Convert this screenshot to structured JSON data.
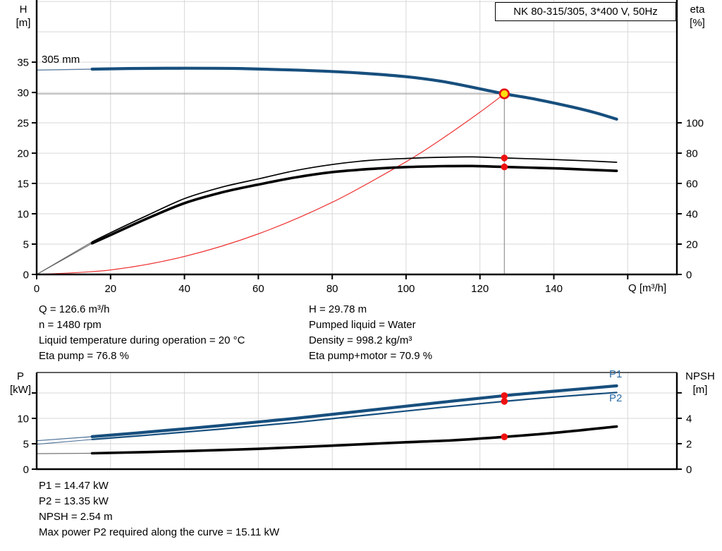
{
  "labels": {
    "product": "NK 80-315/305, 3*400 V, 50Hz",
    "h": "H",
    "m_unit": "[m]",
    "eta": "eta",
    "pct_unit": "[%]",
    "p": "P",
    "kw_unit": "[kW]",
    "npsh": "NPSH",
    "npsh_unit": "[m]",
    "q_axis": "Q [m³/h]",
    "impeller": "305 mm",
    "p1": "P1",
    "p2": "P2"
  },
  "info_top": {
    "left": [
      "Q = 126.6 m³/h",
      "n = 1480 rpm",
      "Liquid temperature during operation = 20 °C",
      "Eta pump = 76.8 %"
    ],
    "right": [
      "H = 29.78 m",
      "Pumped liquid = Water",
      "Density = 998.2 kg/m³",
      "Eta pump+motor = 70.9 %"
    ]
  },
  "info_bottom": [
    "P1 = 14.47 kW",
    "P2 = 13.35 kW",
    "NPSH = 2.54 m",
    "Max power P2 required along the curve = 15.11 kW"
  ],
  "duty": {
    "Q_m3h": 126.6,
    "H_m": 29.78,
    "eta_pump_pct": 76.8,
    "eta_pump_motor_pct": 70.9,
    "P1_kW": 14.47,
    "P2_kW": 13.35,
    "NPSH_m": 2.54,
    "max_P2_kW": 15.11,
    "speed_rpm": 1480,
    "impeller_mm": 305
  },
  "colors": {
    "curve_blue": "#174f7e",
    "label_blue": "#2e6ca5",
    "curve_black": "#000000",
    "system_red": "#ee3333",
    "marker_red": "#ef1010",
    "duty_yellow": "#ffdf0d",
    "duty_ring_red": "#e51212",
    "grid_gray": "#d7d7d7",
    "crosshair_gray": "#8a8a8a"
  },
  "chart_data": [
    {
      "type": "line",
      "title": "NK 80-315/305, 3*400 V, 50Hz",
      "x": {
        "label": "Q [m³/h]",
        "min": 0,
        "max": 173.3,
        "ticks": [
          0,
          20,
          40,
          60,
          80,
          100,
          120,
          140
        ],
        "minor_ticks": [
          160
        ],
        "grid": [
          20,
          40,
          60,
          80,
          100,
          120,
          140,
          160
        ]
      },
      "left_axis": {
        "label": "H [m]",
        "min": 0,
        "max": 45.25,
        "ticks": [
          0,
          5,
          10,
          15,
          20,
          25,
          30,
          35
        ],
        "grid": [
          5,
          10,
          15,
          20,
          25,
          30,
          35,
          40,
          45
        ]
      },
      "right_axis": {
        "label": "eta [%]",
        "min": 0,
        "max": 181,
        "ticks": [
          0,
          20,
          40,
          60,
          80,
          100
        ]
      },
      "crosshair": {
        "x": 126.6,
        "y_left": 29.78
      },
      "series": [
        {
          "name": "head-curve-extension",
          "axis": "left",
          "color": "#5d7da1",
          "width": 1.3,
          "smooth": false,
          "points": [
            [
              0,
              33.7
            ],
            [
              15,
              33.85
            ]
          ]
        },
        {
          "name": "system-curve",
          "axis": "left",
          "color": "#ee3333",
          "width": 1.2,
          "smooth": true,
          "points": [
            [
              0,
              0
            ],
            [
              20,
              0.74
            ],
            [
              40,
              2.97
            ],
            [
              60,
              6.69
            ],
            [
              80,
              11.9
            ],
            [
              100,
              18.58
            ],
            [
              110,
              22.48
            ],
            [
              120,
              26.75
            ],
            [
              126.6,
              29.78
            ]
          ]
        },
        {
          "name": "eta-pump-extension",
          "axis": "right",
          "color": "#666666",
          "width": 1.1,
          "smooth": false,
          "points": [
            [
              0,
              0
            ],
            [
              15,
              21.5
            ]
          ]
        },
        {
          "name": "eta-pump-motor-extension",
          "axis": "right",
          "color": "#666666",
          "width": 1.1,
          "smooth": false,
          "points": [
            [
              0,
              0
            ],
            [
              15,
              20.5
            ]
          ]
        },
        {
          "name": "eta-pump-curve",
          "axis": "right",
          "color": "#000000",
          "width": 1.7,
          "smooth": true,
          "points": [
            [
              15,
              21.5
            ],
            [
              20,
              27.5
            ],
            [
              30,
              39
            ],
            [
              40,
              50
            ],
            [
              50,
              57.5
            ],
            [
              60,
              63
            ],
            [
              70,
              68.5
            ],
            [
              80,
              72.5
            ],
            [
              90,
              75.2
            ],
            [
              100,
              76.5
            ],
            [
              110,
              77.3
            ],
            [
              118,
              77.5
            ],
            [
              126.6,
              76.8
            ],
            [
              140,
              75.8
            ],
            [
              150,
              74.8
            ],
            [
              157,
              74
            ]
          ]
        },
        {
          "name": "eta-pump-motor-curve",
          "axis": "right",
          "color": "#000000",
          "width": 3.6,
          "smooth": true,
          "points": [
            [
              15,
              20.5
            ],
            [
              20,
              26
            ],
            [
              30,
              37
            ],
            [
              40,
              47
            ],
            [
              50,
              54
            ],
            [
              60,
              59.3
            ],
            [
              70,
              64
            ],
            [
              80,
              67.5
            ],
            [
              90,
              69.5
            ],
            [
              100,
              70.8
            ],
            [
              110,
              71.4
            ],
            [
              118,
              71.5
            ],
            [
              126.6,
              70.9
            ],
            [
              140,
              70
            ],
            [
              150,
              69
            ],
            [
              157,
              68.3
            ]
          ]
        },
        {
          "name": "head-curve-305mm",
          "axis": "left",
          "color": "#174f7e",
          "width": 4.2,
          "smooth": true,
          "points": [
            [
              15,
              33.85
            ],
            [
              25,
              33.95
            ],
            [
              40,
              34
            ],
            [
              55,
              33.95
            ],
            [
              70,
              33.7
            ],
            [
              85,
              33.3
            ],
            [
              100,
              32.6
            ],
            [
              110,
              31.8
            ],
            [
              120,
              30.6
            ],
            [
              126.6,
              29.78
            ],
            [
              135,
              28.9
            ],
            [
              145,
              27.6
            ],
            [
              151,
              26.7
            ],
            [
              157,
              25.6
            ]
          ]
        }
      ],
      "markers": [
        {
          "name": "eta-pump-dot",
          "x": 126.6,
          "value": 76.8,
          "axis": "right",
          "style": "dot"
        },
        {
          "name": "eta-pump-motor-dot",
          "x": 126.6,
          "value": 70.9,
          "axis": "right",
          "style": "dot"
        },
        {
          "name": "duty-point",
          "x": 126.6,
          "value": 29.78,
          "axis": "left",
          "style": "duty"
        }
      ]
    },
    {
      "type": "line",
      "x": {
        "min": 0,
        "max": 173.3,
        "ticks": [],
        "minor_ticks": [],
        "grid": [
          20,
          40,
          60,
          80,
          100,
          120,
          140,
          160
        ]
      },
      "left_axis": {
        "label": "P [kW]",
        "min": 0,
        "max": 19.03,
        "ticks": [
          0,
          5,
          10
        ],
        "minor_ticks": [
          15
        ],
        "grid": [
          5,
          10,
          15
        ]
      },
      "right_axis": {
        "label": "NPSH [m]",
        "min": 0,
        "max": 7.6,
        "ticks": [
          0,
          2,
          4
        ],
        "minor_ticks": [
          6
        ]
      },
      "series": [
        {
          "name": "p1-curve-extension",
          "axis": "left",
          "color": "#4a6f96",
          "width": 1.2,
          "smooth": false,
          "points": [
            [
              0,
              5.6
            ],
            [
              15,
              6.4
            ]
          ]
        },
        {
          "name": "p2-curve-extension",
          "axis": "left",
          "color": "#4a6f96",
          "width": 1.1,
          "smooth": false,
          "points": [
            [
              0,
              4.9
            ],
            [
              15,
              5.85
            ]
          ]
        },
        {
          "name": "npsh-curve-extension",
          "axis": "right",
          "color": "#777777",
          "width": 1.2,
          "smooth": false,
          "points": [
            [
              0,
              1.22
            ],
            [
              15,
              1.25
            ]
          ]
        },
        {
          "name": "p2-curve",
          "axis": "left",
          "color": "#174f7e",
          "width": 2.2,
          "smooth": true,
          "points": [
            [
              15,
              5.85
            ],
            [
              30,
              6.7
            ],
            [
              50,
              7.9
            ],
            [
              70,
              9.2
            ],
            [
              90,
              10.7
            ],
            [
              110,
              12.2
            ],
            [
              126.6,
              13.35
            ],
            [
              140,
              14.2
            ],
            [
              157,
              15.1
            ]
          ]
        },
        {
          "name": "p1-curve",
          "axis": "left",
          "color": "#174f7e",
          "width": 4.2,
          "smooth": true,
          "points": [
            [
              15,
              6.4
            ],
            [
              30,
              7.3
            ],
            [
              50,
              8.6
            ],
            [
              70,
              10
            ],
            [
              90,
              11.6
            ],
            [
              110,
              13.2
            ],
            [
              126.6,
              14.47
            ],
            [
              140,
              15.35
            ],
            [
              157,
              16.4
            ]
          ]
        },
        {
          "name": "npsh-curve",
          "axis": "right",
          "color": "#000000",
          "width": 3.6,
          "smooth": true,
          "points": [
            [
              15,
              1.25
            ],
            [
              40,
              1.42
            ],
            [
              60,
              1.6
            ],
            [
              80,
              1.85
            ],
            [
              100,
              2.12
            ],
            [
              112,
              2.26
            ],
            [
              126.6,
              2.54
            ],
            [
              140,
              2.85
            ],
            [
              157,
              3.35
            ]
          ]
        }
      ],
      "markers": [
        {
          "name": "p1-dot",
          "x": 126.6,
          "value": 14.47,
          "axis": "left",
          "style": "dot"
        },
        {
          "name": "p2-dot",
          "x": 126.6,
          "value": 13.35,
          "axis": "left",
          "style": "dot"
        },
        {
          "name": "npsh-dot",
          "x": 126.6,
          "value": 2.54,
          "axis": "right",
          "style": "dot"
        }
      ]
    }
  ]
}
